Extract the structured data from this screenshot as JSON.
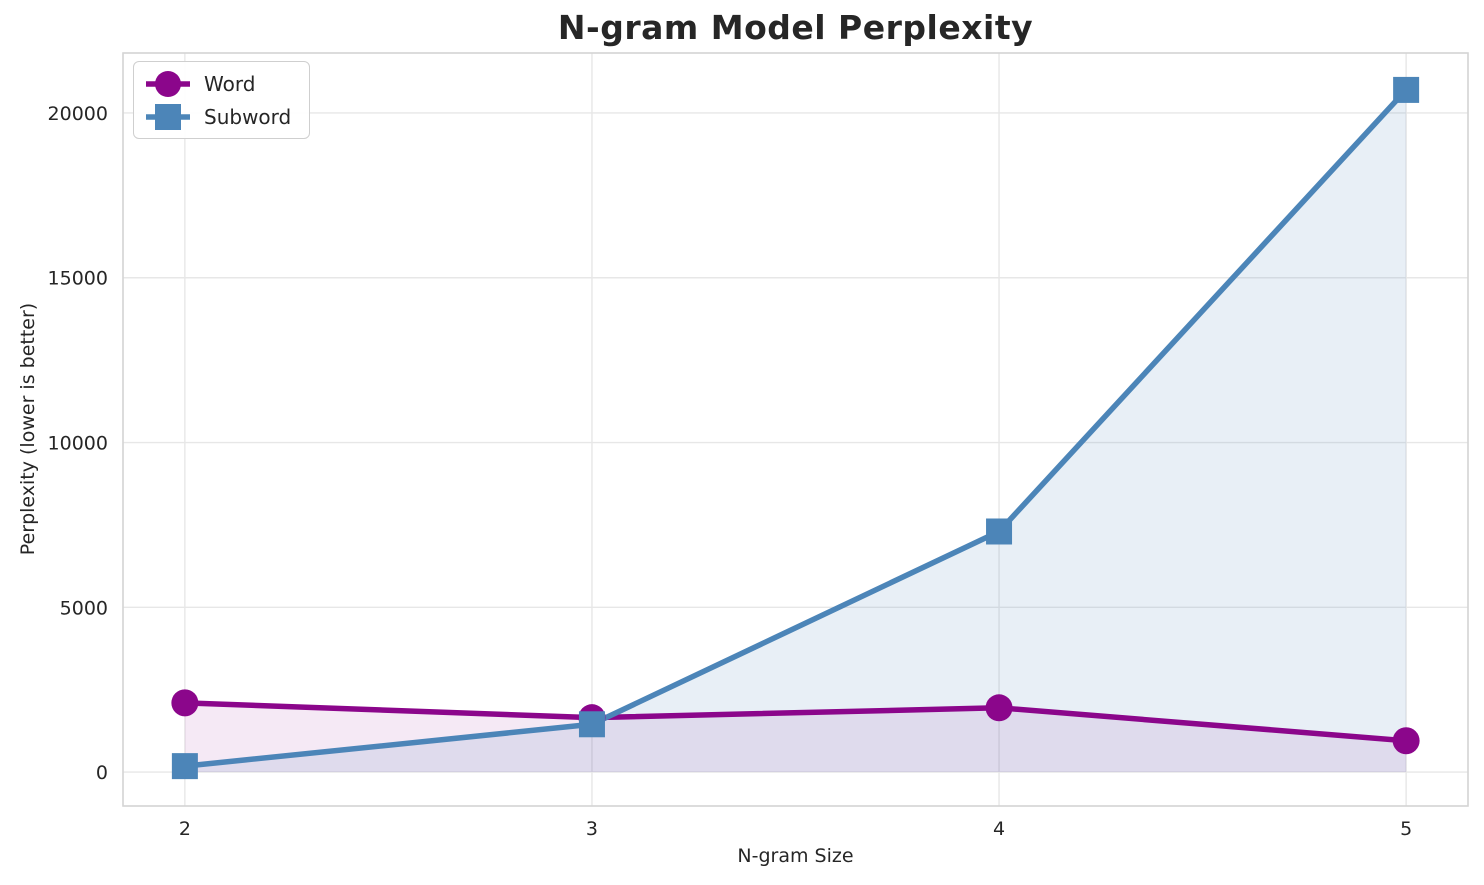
{
  "chart_data": {
    "type": "line",
    "title": "N-gram Model Perplexity",
    "xlabel": "N-gram Size",
    "ylabel": "Perplexity (lower is better)",
    "x": [
      2,
      3,
      4,
      5
    ],
    "series": [
      {
        "name": "Word",
        "values": [
          2100,
          1650,
          1950,
          950
        ],
        "color": "#8B068B",
        "marker": "circle",
        "fill_opacity": 0.09
      },
      {
        "name": "Subword",
        "values": [
          180,
          1450,
          7300,
          20700
        ],
        "color": "#4C85B8",
        "marker": "square",
        "fill_opacity": 0.13
      }
    ],
    "xticks": [
      2,
      3,
      4,
      5
    ],
    "yticks": [
      0,
      5000,
      10000,
      15000,
      20000
    ],
    "xlim": [
      1.848,
      5.152
    ],
    "ylim": [
      -1030,
      21820
    ],
    "grid": true,
    "area_fill_baseline": 0,
    "legend_position": "upper left",
    "colors": {
      "grid": "#E7E7E7",
      "spine": "#D4D4D4",
      "text": "#262626",
      "background": "#FFFFFF"
    }
  }
}
